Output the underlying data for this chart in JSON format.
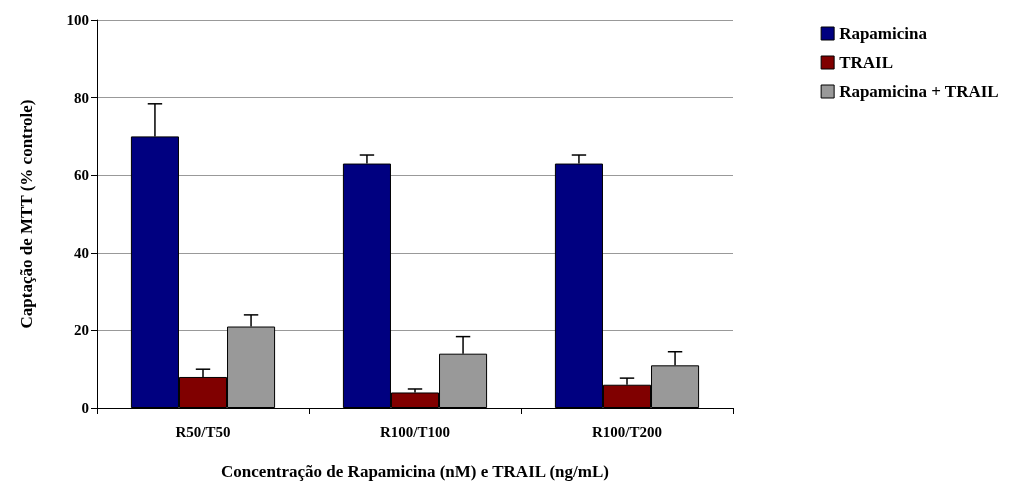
{
  "chart_data": {
    "type": "bar",
    "xlabel": "Concentração de Rapamicina (nM) e TRAIL (ng/mL)",
    "ylabel": "Captação de MTT (% controle)",
    "categories": [
      "R50/T50",
      "R100/T100",
      "R100/T200"
    ],
    "series": [
      {
        "name": "Rapamicina",
        "color": "#000080",
        "values": [
          70,
          63,
          63
        ],
        "errors": [
          [
            70,
            78.4
          ],
          [
            63,
            65.2
          ],
          [
            63,
            65.2
          ]
        ]
      },
      {
        "name": "TRAIL",
        "color": "#800000",
        "values": [
          8,
          4,
          6
        ],
        "errors": [
          [
            8,
            10
          ],
          [
            4,
            4.9
          ],
          [
            6,
            7.7
          ]
        ]
      },
      {
        "name": "Rapamicina + TRAIL",
        "color": "#999999",
        "values": [
          21,
          14,
          11
        ],
        "errors": [
          [
            21,
            24
          ],
          [
            14,
            18.4
          ],
          [
            11,
            14.5
          ]
        ]
      }
    ],
    "ylim": [
      0,
      100
    ],
    "yticks": [
      0,
      20,
      40,
      60,
      80,
      100
    ],
    "grid": "y",
    "legend": "top right"
  }
}
